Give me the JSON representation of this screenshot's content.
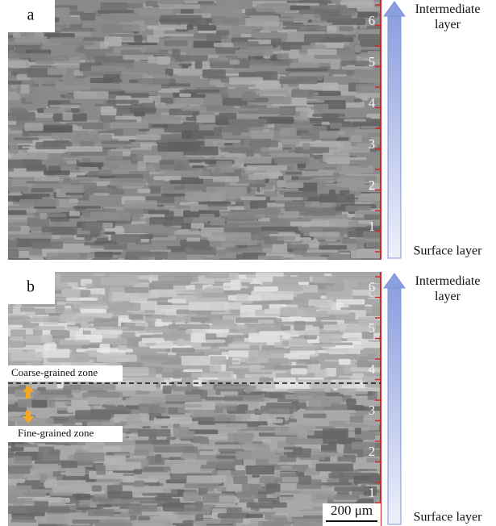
{
  "panels": [
    {
      "label": "a",
      "scale_labels": [
        "1",
        "2",
        "3",
        "4",
        "5",
        "6"
      ],
      "top_label": "Intermediate layer",
      "bottom_label": "Surface layer"
    },
    {
      "label": "b",
      "scale_labels": [
        "1",
        "2",
        "3",
        "4",
        "5",
        "6"
      ],
      "top_label": "Intermediate layer",
      "bottom_label": "Surface layer",
      "annotations": {
        "coarse": "Coarse-grained zone",
        "fine": "Fine-grained zone",
        "scale_bar": "200 μm"
      }
    }
  ]
}
